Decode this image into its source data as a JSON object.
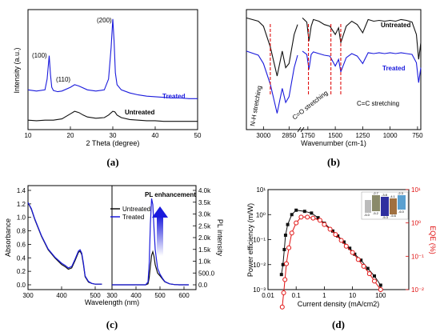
{
  "chart_data": [
    {
      "panel": "(a)",
      "type": "line",
      "xlabel": "2 Theta (degree)",
      "ylabel": "Intensity (a.u.)",
      "xlim": [
        10,
        50
      ],
      "xticks": [
        10,
        20,
        30,
        40,
        50
      ],
      "annotations": [
        "(100)",
        "(110)",
        "(200)"
      ],
      "series": [
        {
          "name": "Treated",
          "color": "#1a1adc",
          "x": [
            10,
            12,
            14,
            14.5,
            15,
            15.3,
            15.6,
            16,
            17,
            18,
            20,
            21,
            22,
            24,
            26,
            28,
            29,
            29.6,
            30,
            30.3,
            30.6,
            31,
            32,
            34,
            36,
            38,
            40,
            42,
            44,
            46,
            48,
            50
          ],
          "y": [
            0.58,
            0.56,
            0.58,
            0.75,
            1.12,
            0.82,
            0.62,
            0.57,
            0.55,
            0.56,
            0.62,
            0.66,
            0.64,
            0.58,
            0.56,
            0.58,
            0.75,
            1.25,
            1.7,
            1.35,
            0.85,
            0.66,
            0.58,
            0.53,
            0.5,
            0.48,
            0.47,
            0.46,
            0.45,
            0.45,
            0.44,
            0.44
          ]
        },
        {
          "name": "Untreated",
          "color": "#111111",
          "x": [
            10,
            12,
            14,
            16,
            18,
            20,
            21,
            22,
            23,
            24,
            26,
            28,
            29,
            30,
            30.5,
            31,
            32,
            34,
            36,
            38,
            40,
            42,
            44,
            46,
            48,
            50
          ],
          "y": [
            0.1,
            0.09,
            0.1,
            0.1,
            0.12,
            0.2,
            0.24,
            0.22,
            0.18,
            0.15,
            0.13,
            0.14,
            0.18,
            0.24,
            0.23,
            0.18,
            0.14,
            0.11,
            0.1,
            0.09,
            0.09,
            0.08,
            0.08,
            0.08,
            0.08,
            0.08
          ]
        }
      ]
    },
    {
      "panel": "(b)",
      "type": "line",
      "xlabel": "Wavenumber (cm-1)",
      "xticks": [
        3000,
        2850,
        1750,
        1500,
        1250,
        1000,
        750
      ],
      "annotations": [
        "N-H stretching",
        "C=O stretching",
        "C=C stretching"
      ],
      "series": [
        {
          "name": "Untreated",
          "color": "#111111",
          "x": [
            3100,
            3030,
            3000,
            2960,
            2920,
            2890,
            2870,
            2850,
            2820,
            2800,
            1800,
            1760,
            1740,
            1720,
            1700,
            1650,
            1600,
            1550,
            1500,
            1470,
            1450,
            1400,
            1350,
            1300,
            1250,
            1200,
            1150,
            1100,
            1050,
            1000,
            950,
            900,
            850,
            800,
            760,
            740,
            720
          ],
          "y": [
            0.9,
            0.86,
            0.8,
            0.55,
            0.2,
            0.5,
            0.3,
            0.35,
            0.7,
            0.82,
            0.9,
            0.85,
            0.62,
            0.8,
            0.88,
            0.86,
            0.82,
            0.8,
            0.7,
            0.78,
            0.6,
            0.8,
            0.86,
            0.82,
            0.72,
            0.88,
            0.86,
            0.87,
            0.86,
            0.87,
            0.86,
            0.88,
            0.87,
            0.85,
            0.7,
            0.4,
            0.6
          ]
        },
        {
          "name": "Treated",
          "color": "#1a1adc",
          "x": [
            3100,
            3030,
            3000,
            2960,
            2920,
            2890,
            2870,
            2850,
            2820,
            2800,
            1800,
            1760,
            1740,
            1720,
            1700,
            1650,
            1600,
            1550,
            1500,
            1470,
            1450,
            1400,
            1350,
            1300,
            1250,
            1200,
            1150,
            1100,
            1050,
            1000,
            950,
            900,
            850,
            800,
            760,
            740,
            720
          ],
          "y": [
            0.5,
            0.45,
            0.35,
            0.1,
            -0.25,
            0.05,
            -0.12,
            -0.05,
            0.3,
            0.45,
            0.5,
            0.46,
            0.28,
            0.46,
            0.49,
            0.47,
            0.45,
            0.44,
            0.32,
            0.4,
            0.25,
            0.42,
            0.47,
            0.44,
            0.35,
            0.48,
            0.47,
            0.48,
            0.47,
            0.48,
            0.47,
            0.48,
            0.47,
            0.46,
            0.36,
            0.12,
            0.3
          ]
        }
      ]
    },
    {
      "panel": "(c)",
      "type": "line",
      "xlabel": "Wavelength (nm)",
      "ylabel": "Absorbance",
      "ylabel_right": "PL intensity",
      "xticks_left": [
        300,
        400,
        500
      ],
      "xticks_right": [
        300,
        400,
        500,
        600
      ],
      "yticks_left": [
        0.0,
        0.2,
        0.4,
        0.6,
        0.8,
        1.0,
        1.2,
        1.4
      ],
      "yticks_right": [
        "0.0",
        "500.0",
        "1.0k",
        "1.5k",
        "2.0k",
        "2.5k",
        "3.0k",
        "3.5k",
        "4.0k"
      ],
      "annotations": [
        "PL enhancement"
      ],
      "absorbance": [
        {
          "name": "Untreated",
          "color": "#111111",
          "x": [
            300,
            310,
            320,
            340,
            360,
            380,
            400,
            410,
            420,
            430,
            440,
            450,
            455,
            460,
            465,
            470,
            480,
            490,
            500,
            510,
            520
          ],
          "y": [
            1.22,
            1.12,
            0.97,
            0.72,
            0.52,
            0.4,
            0.3,
            0.27,
            0.23,
            0.25,
            0.36,
            0.48,
            0.5,
            0.45,
            0.3,
            0.12,
            0.04,
            0.02,
            0.01,
            0.01,
            0.01
          ]
        },
        {
          "name": "Treated",
          "color": "#1a1adc",
          "x": [
            300,
            310,
            320,
            340,
            360,
            380,
            400,
            410,
            420,
            430,
            440,
            450,
            455,
            460,
            465,
            470,
            480,
            490,
            500,
            510,
            520
          ],
          "y": [
            1.22,
            1.13,
            0.98,
            0.73,
            0.53,
            0.41,
            0.32,
            0.29,
            0.25,
            0.27,
            0.38,
            0.5,
            0.52,
            0.47,
            0.32,
            0.13,
            0.05,
            0.02,
            0.01,
            0.01,
            0.01
          ]
        }
      ],
      "pl": [
        {
          "name": "Untreated",
          "color": "#111111",
          "x": [
            300,
            440,
            450,
            455,
            460,
            465,
            470,
            475,
            480,
            490,
            500,
            510,
            520,
            540,
            560,
            580,
            600,
            620
          ],
          "y": [
            0,
            0,
            40,
            300,
            800,
            1250,
            1400,
            1200,
            850,
            500,
            380,
            250,
            130,
            40,
            10,
            0,
            0,
            0
          ]
        },
        {
          "name": "Treated",
          "color": "#1a1adc",
          "x": [
            300,
            440,
            450,
            455,
            460,
            465,
            470,
            475,
            480,
            490,
            500,
            510,
            520,
            540,
            560,
            580,
            600,
            620
          ],
          "y": [
            0,
            0,
            120,
            900,
            2600,
            3650,
            3400,
            2400,
            1500,
            700,
            450,
            280,
            140,
            40,
            10,
            0,
            0,
            0
          ]
        }
      ]
    },
    {
      "panel": "(d)",
      "type": "scatter",
      "xlabel": "Current density (mA/cm2)",
      "ylabel": "Power efficiency (m/W)",
      "ylabel_right": "EQE (%)",
      "xlim": [
        0.01,
        1000
      ],
      "xticks": [
        "0.01",
        "0.1",
        "1",
        "10",
        "100"
      ],
      "series": [
        {
          "name": "Power efficiency",
          "color": "#111111",
          "marker": "square",
          "x": [
            0.03,
            0.034,
            0.038,
            0.042,
            0.05,
            0.07,
            0.1,
            0.2,
            0.35,
            0.6,
            1.0,
            2.0,
            3.0,
            5.0,
            8.0,
            12,
            20,
            35,
            60,
            100
          ],
          "y": [
            0.004,
            0.01,
            0.04,
            0.15,
            0.4,
            1.0,
            1.5,
            1.35,
            1.15,
            0.75,
            0.45,
            0.22,
            0.14,
            0.08,
            0.045,
            0.026,
            0.015,
            0.007,
            0.0035,
            0.0015
          ]
        },
        {
          "name": "EQE",
          "color": "#e01010",
          "marker": "circle",
          "x": [
            0.032,
            0.036,
            0.04,
            0.045,
            0.055,
            0.07,
            0.1,
            0.15,
            0.25,
            0.4,
            0.7,
            1.0,
            1.6,
            2.5,
            4,
            6,
            10,
            16,
            25,
            40,
            60,
            100
          ],
          "y": [
            0.003,
            0.008,
            0.02,
            0.06,
            0.18,
            0.5,
            1.0,
            1.5,
            1.5,
            1.4,
            1.2,
            0.9,
            0.65,
            0.45,
            0.3,
            0.2,
            0.13,
            0.08,
            0.05,
            0.03,
            0.018,
            0.01
          ]
        }
      ],
      "inset_values": [
        "-2.7",
        "-2.3",
        "-3.8",
        "-4.1",
        "-5.0",
        "-5.2",
        "-5.3",
        "-5.6",
        "-6.0"
      ]
    }
  ]
}
